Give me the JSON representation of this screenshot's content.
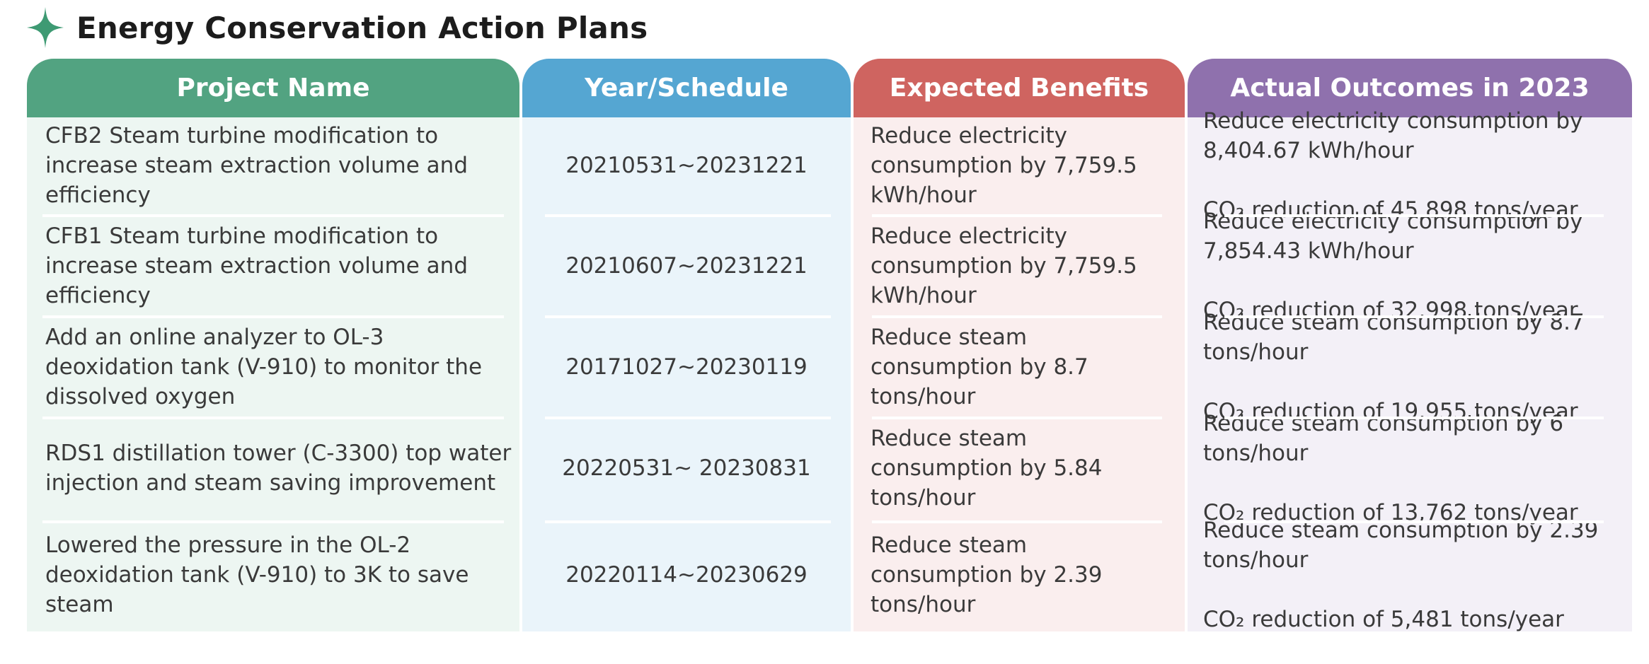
{
  "page": {
    "title": "Energy Conservation Action Plans",
    "accent_color": "#3e9a73",
    "title_icon": "four-point-star-icon"
  },
  "table": {
    "headers": [
      "Project Name",
      "Year/Schedule",
      "Expected Benefits",
      "Actual Outcomes in 2023"
    ],
    "header_colors": [
      "#52a381",
      "#55a6d2",
      "#cf6460",
      "#8f71ad"
    ],
    "rows": [
      {
        "project": "CFB2 Steam turbine modification to increase steam extraction volume and efficiency",
        "schedule": "20210531~20231221",
        "expected": "Reduce electricity consumption by 7,759.5 kWh/hour",
        "outcome_line1": "Reduce electricity consumption by 8,404.67 kWh/hour",
        "outcome_line2": "CO₂ reduction of 45,898 tons/year"
      },
      {
        "project": "CFB1 Steam turbine modification to increase steam extraction volume and efficiency",
        "schedule": "20210607~20231221",
        "expected": "Reduce electricity consumption by 7,759.5 kWh/hour",
        "outcome_line1": "Reduce electricity consumption by 7,854.43 kWh/hour",
        "outcome_line2": "CO₂ reduction of 32,998 tons/year"
      },
      {
        "project": "Add an online analyzer to OL-3 deoxidation tank (V-910) to monitor the dissolved oxygen",
        "schedule": "20171027~20230119",
        "expected": "Reduce steam consumption by 8.7 tons/hour",
        "outcome_line1": "Reduce steam consumption by 8.7 tons/hour",
        "outcome_line2": "CO₂ reduction of 19,955 tons/year"
      },
      {
        "project": "RDS1 distillation tower (C-3300) top water injection and steam saving improvement",
        "schedule": "20220531~ 20230831",
        "expected": "Reduce steam consumption by 5.84 tons/hour",
        "outcome_line1": "Reduce steam consumption by 6 tons/hour",
        "outcome_line2": "CO₂ reduction of 13,762 tons/year"
      },
      {
        "project": "Lowered the pressure in the OL-2 deoxidation tank (V-910) to 3K to save steam",
        "schedule": "20220114~20230629",
        "expected": "Reduce steam consumption by 2.39 tons/hour",
        "outcome_line1": "Reduce steam consumption by 2.39 tons/hour",
        "outcome_line2": "CO₂ reduction of 5,481 tons/year"
      }
    ]
  }
}
